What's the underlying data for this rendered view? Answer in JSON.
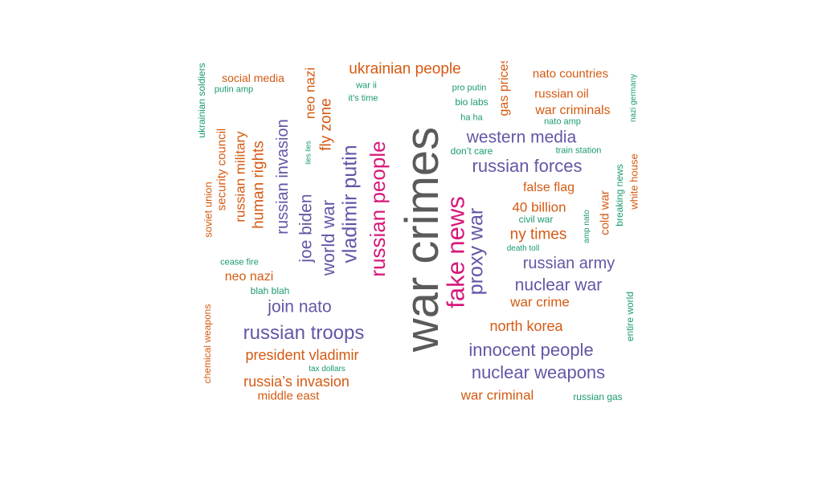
{
  "chart_data": {
    "type": "wordcloud",
    "title": "",
    "palette": {
      "gray": "#5a5a5a",
      "magenta": "#d6197a",
      "purple": "#6456a6",
      "orange": "#d45a12",
      "green": "#1b9a6e"
    },
    "words": [
      {
        "text": "war crimes",
        "color": "gray",
        "rotated": true
      },
      {
        "text": "fake news",
        "color": "magenta",
        "rotated": true
      },
      {
        "text": "russian people",
        "color": "magenta",
        "rotated": true
      },
      {
        "text": "vladimir putin",
        "color": "purple",
        "rotated": true
      },
      {
        "text": "proxy war",
        "color": "purple",
        "rotated": true
      },
      {
        "text": "world war",
        "color": "purple",
        "rotated": true
      },
      {
        "text": "joe biden",
        "color": "purple",
        "rotated": true
      },
      {
        "text": "russian invasion",
        "color": "purple",
        "rotated": true
      },
      {
        "text": "russian troops",
        "color": "purple",
        "rotated": false
      },
      {
        "text": "innocent people",
        "color": "purple",
        "rotated": false
      },
      {
        "text": "nuclear weapons",
        "color": "purple",
        "rotated": false
      },
      {
        "text": "russian forces",
        "color": "purple",
        "rotated": false
      },
      {
        "text": "western media",
        "color": "purple",
        "rotated": false
      },
      {
        "text": "nuclear war",
        "color": "purple",
        "rotated": false
      },
      {
        "text": "russian army",
        "color": "purple",
        "rotated": false
      },
      {
        "text": "join nato",
        "color": "purple",
        "rotated": false
      },
      {
        "text": "ukrainian people",
        "color": "orange",
        "rotated": false
      },
      {
        "text": "human rights",
        "color": "orange",
        "rotated": true
      },
      {
        "text": "russian military",
        "color": "orange",
        "rotated": true
      },
      {
        "text": "security council",
        "color": "orange",
        "rotated": true
      },
      {
        "text": "fly zone",
        "color": "orange",
        "rotated": true
      },
      {
        "text": "neo nazi",
        "color": "orange",
        "rotated": true
      },
      {
        "text": "gas prices",
        "color": "orange",
        "rotated": true
      },
      {
        "text": "president vladimir",
        "color": "orange",
        "rotated": false
      },
      {
        "text": "russia’s invasion",
        "color": "orange",
        "rotated": false
      },
      {
        "text": "north korea",
        "color": "orange",
        "rotated": false
      },
      {
        "text": "ny times",
        "color": "orange",
        "rotated": false
      },
      {
        "text": "40 billion",
        "color": "orange",
        "rotated": false
      },
      {
        "text": "war crime",
        "color": "orange",
        "rotated": false
      },
      {
        "text": "war criminal",
        "color": "orange",
        "rotated": false
      },
      {
        "text": "war criminals",
        "color": "orange",
        "rotated": false
      },
      {
        "text": "false flag",
        "color": "orange",
        "rotated": false
      },
      {
        "text": "russian oil",
        "color": "orange",
        "rotated": false
      },
      {
        "text": "nato countries",
        "color": "orange",
        "rotated": false
      },
      {
        "text": "neo nazi",
        "color": "orange",
        "rotated": false
      },
      {
        "text": "social media",
        "color": "orange",
        "rotated": false
      },
      {
        "text": "middle east",
        "color": "orange",
        "rotated": false
      },
      {
        "text": "cold war",
        "color": "orange",
        "rotated": true
      },
      {
        "text": "white house",
        "color": "orange",
        "rotated": true
      },
      {
        "text": "soviet union",
        "color": "orange",
        "rotated": true
      },
      {
        "text": "chemical weapons",
        "color": "orange",
        "rotated": true
      },
      {
        "text": "ukrainian soldiers",
        "color": "green",
        "rotated": true
      },
      {
        "text": "breaking news",
        "color": "green",
        "rotated": true
      },
      {
        "text": "entire world",
        "color": "green",
        "rotated": true
      },
      {
        "text": "nazi germany",
        "color": "green",
        "rotated": true
      },
      {
        "text": "amp nato",
        "color": "green",
        "rotated": true
      },
      {
        "text": "lies lies",
        "color": "green",
        "rotated": true
      },
      {
        "text": "russian gas",
        "color": "green",
        "rotated": false
      },
      {
        "text": "blah blah",
        "color": "green",
        "rotated": false
      },
      {
        "text": "cease fire",
        "color": "green",
        "rotated": false
      },
      {
        "text": "tax dollars",
        "color": "green",
        "rotated": false
      },
      {
        "text": "civil war",
        "color": "green",
        "rotated": false
      },
      {
        "text": "death toll",
        "color": "green",
        "rotated": false
      },
      {
        "text": "train station",
        "color": "green",
        "rotated": false
      },
      {
        "text": "don’t care",
        "color": "green",
        "rotated": false
      },
      {
        "text": "bio labs",
        "color": "green",
        "rotated": false
      },
      {
        "text": "ha ha",
        "color": "green",
        "rotated": false
      },
      {
        "text": "pro putin",
        "color": "green",
        "rotated": false
      },
      {
        "text": "nato amp",
        "color": "green",
        "rotated": false
      },
      {
        "text": "war ii",
        "color": "green",
        "rotated": false
      },
      {
        "text": "it’s time",
        "color": "green",
        "rotated": false
      },
      {
        "text": "putin amp",
        "color": "green",
        "rotated": false
      }
    ]
  }
}
